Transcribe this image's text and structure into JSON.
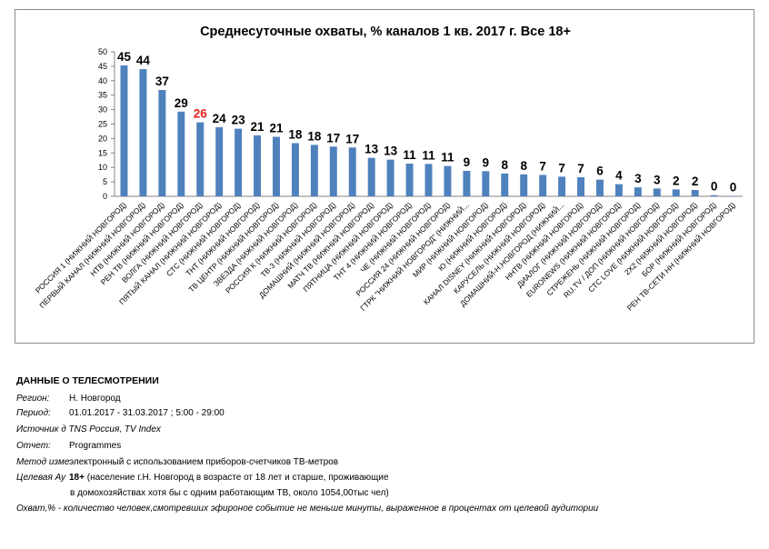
{
  "chart_data": {
    "type": "bar",
    "title": "Среднесуточные охваты, %  каналов 1 кв. 2017 г. Все 18+",
    "xlabel": "",
    "ylabel": "",
    "ylim": [
      0,
      50
    ],
    "yticks": [
      0,
      5,
      10,
      15,
      20,
      25,
      30,
      35,
      40,
      45,
      50
    ],
    "grid": false,
    "legend": "none",
    "bar_color": "#4f81bd",
    "label_color": "#000000",
    "highlight_color": "#e0201b",
    "highlight_index": 4,
    "categories": [
      "РОССИЯ 1 (НИЖНИЙ НОВГОРОД)",
      "ПЕРВЫЙ КАНАЛ (НИЖНИЙ НОВГОРОД)",
      "НТВ (НИЖНИЙ НОВГОРОД)",
      "РЕН ТВ (НИЖНИЙ НОВГОРОД)",
      "ВОЛГА (НИЖНИЙ НОВГОРОД)",
      "ПЯТЫЙ КАНАЛ (НИЖНИЙ НОВГОРОД)",
      "СТС (НИЖНИЙ НОВГОРОД)",
      "ТНТ (НИЖНИЙ НОВГОРОД)",
      "ТВ ЦЕНТР (НИЖНИЙ НОВГОРОД)",
      "ЗВЕЗДА (НИЖНИЙ НОВГОРОД)",
      "РОССИЯ К (НИЖНИЙ НОВГОРОД)",
      "ТВ-3 (НИЖНИЙ НОВГОРОД)",
      "ДОМАШНИЙ (НИЖНИЙ НОВГОРОД)",
      "МАТЧ ТВ (НИЖНИЙ НОВГОРОД)",
      "ПЯТНИЦА (НИЖНИЙ НОВГОРОД)",
      "ТНТ 4 (НИЖНИЙ НОВГОРОД)",
      "ЧЕ (НИЖНИЙ НОВГОРОД)",
      "РОССИЯ 24 (НИЖНИЙ НОВГОРОД)",
      "ГТРК \"НИЖНИЙ НОВГОРОД\" (НИЖНИЙ...",
      "МИР (НИЖНИЙ НОВГОРОД)",
      "Ю (НИЖНИЙ НОВГОРОД)",
      "КАНАЛ DISNEY (НИЖНИЙ НОВГОРОД)",
      "КАРУСЕЛЬ (НИЖНИЙ НОВГОРОД)",
      "ДОМАШНИЙ-Н.НОВГОРОД (НИЖНИЙ...",
      "ННТВ (НИЖНИЙ НОВГОРОД)",
      "ДИАЛОГ (НИЖНИЙ НОВГОРОД)",
      "EURONEWS (НИЖНИЙ НОВГОРОД)",
      "СТРЕЖЕНЬ (НИЖНИЙ НОВГОРОД)",
      "RU.TV / ДОП (НИЖНИЙ НОВГОРОД)",
      "СТС LOVE (НИЖНИЙ НОВГОРОД)",
      "2Х2 (НИЖНИЙ НОВГОРОД)",
      "БОР (НИЖНИЙ НОВГОРОД)",
      "РЕН ТВ-СЕТИ НН (НИЖНИЙ НОВГОРОД)"
    ],
    "values": [
      45.3,
      44.0,
      36.8,
      29.3,
      25.6,
      23.9,
      23.4,
      21.1,
      20.6,
      18.4,
      17.8,
      17.2,
      16.9,
      13.3,
      12.7,
      11.3,
      11.2,
      10.5,
      8.8,
      8.7,
      7.9,
      7.6,
      7.4,
      6.8,
      6.6,
      5.8,
      4.2,
      3.1,
      2.7,
      2.4,
      2.2,
      0.4,
      0.1
    ],
    "data_labels": [
      "45",
      "44",
      "37",
      "29",
      "26",
      "24",
      "23",
      "21",
      "21",
      "18",
      "18",
      "17",
      "17",
      "13",
      "13",
      "11",
      "11",
      "11",
      "9",
      "9",
      "8",
      "8",
      "7",
      "7",
      "7",
      "6",
      "4",
      "3",
      "3",
      "2",
      "2",
      "0",
      "0"
    ]
  },
  "info": {
    "title": "ДАННЫЕ О ТЕЛЕСМОТРЕНИИ",
    "region_label": "Регион:",
    "region_value": "Н. Новгород",
    "period_label": "Период:",
    "period_value": "01.01.2017 - 31.03.2017 ; 5:00 - 29:00",
    "source_text": "Источник д TNS Россия, TV Index",
    "report_label": "Отчет:",
    "report_value": "Programmes",
    "method_label": "Метод изме",
    "method_value": "электронный с использованием приборов-счетчиков ТВ-метров",
    "target_label": "Целевая Ау",
    "target_value_bold": "18+",
    "target_value_1": "(население г.Н. Новгород в возрасте от 18 лет и старше, проживающие",
    "target_value_2": "в домохозяйствах хотя бы с одним работающим ТВ, около 1054,00тыс чел)",
    "reach_note": "Охват,% - количество человек,смотревших эфироное событие не меньше минуты, выраженное в процентах от целевой аудитории"
  }
}
